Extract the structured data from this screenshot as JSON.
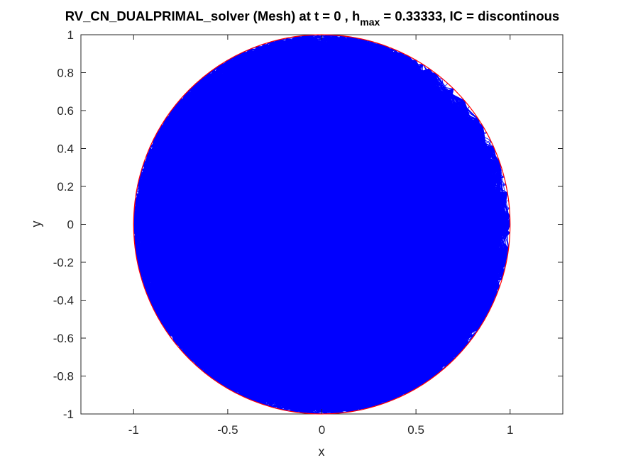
{
  "chart_data": {
    "type": "mesh",
    "title": {
      "prefix": "RV_CN_DUALPRIMAL_solver (Mesh) at t = 0 , h",
      "subscript": "max",
      "suffix": " = 0.33333, IC = discontinous"
    },
    "xlabel": "x",
    "ylabel": "y",
    "xlim": [
      -1.28,
      1.28
    ],
    "ylim": [
      -1,
      1
    ],
    "xticks": [
      -1,
      -0.5,
      0,
      0.5,
      1
    ],
    "xtick_labels": [
      "-1",
      "-0.5",
      "0",
      "0.5",
      "1"
    ],
    "yticks": [
      1,
      0.8,
      0.6,
      0.4,
      0.2,
      0,
      -0.2,
      -0.4,
      -0.6,
      -0.8,
      -1
    ],
    "ytick_labels": [
      "1",
      "0.8",
      "0.6",
      "0.4",
      "0.2",
      "0",
      "-0.2",
      "-0.4",
      "-0.6",
      "-0.8",
      "-1"
    ],
    "grid": false,
    "domain": {
      "shape": "circle",
      "center": [
        0,
        0
      ],
      "radius": 1,
      "color": "#ff0000"
    },
    "mesh": {
      "element": "triangle",
      "color": "#0000ff",
      "h_max": 0.33333,
      "refined_near_boundary": true
    }
  }
}
